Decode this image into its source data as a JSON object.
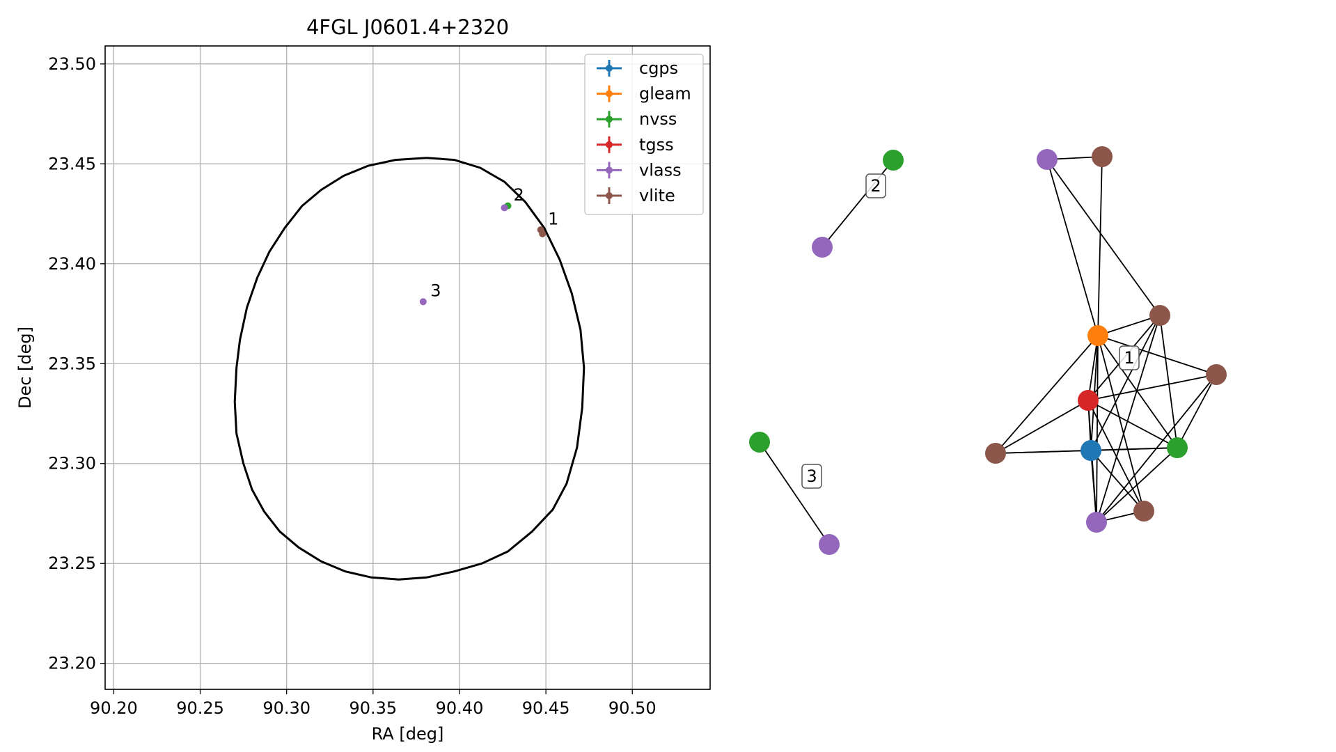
{
  "chart_data": [
    {
      "type": "scatter",
      "title": "4FGL J0601.4+2320",
      "xlabel": "RA [deg]",
      "ylabel": "Dec [deg]",
      "xlim": [
        90.195,
        90.545
      ],
      "ylim": [
        23.187,
        23.509
      ],
      "xticks": [
        "90.20",
        "90.25",
        "90.30",
        "90.35",
        "90.40",
        "90.45",
        "90.50"
      ],
      "yticks": [
        "23.20",
        "23.25",
        "23.30",
        "23.35",
        "23.40",
        "23.45",
        "23.50"
      ],
      "grid": true,
      "legend_position": "top-right",
      "series": [
        {
          "name": "cgps",
          "color": "#1f77b4",
          "points": []
        },
        {
          "name": "gleam",
          "color": "#ff7f0e",
          "points": []
        },
        {
          "name": "nvss",
          "color": "#2ca02c",
          "points": [
            {
              "x": 90.428,
              "y": 23.429
            }
          ]
        },
        {
          "name": "tgss",
          "color": "#d62728",
          "points": []
        },
        {
          "name": "vlass",
          "color": "#9467bd",
          "points": [
            {
              "x": 90.426,
              "y": 23.428
            },
            {
              "x": 90.379,
              "y": 23.381
            }
          ]
        },
        {
          "name": "vlite",
          "color": "#8c564b",
          "points": [
            {
              "x": 90.447,
              "y": 23.417
            },
            {
              "x": 90.448,
              "y": 23.415
            }
          ]
        }
      ],
      "ellipse": {
        "color": "#000000",
        "points": [
          [
            90.381,
            23.453
          ],
          [
            90.397,
            23.452
          ],
          [
            90.412,
            23.448
          ],
          [
            90.426,
            23.441
          ],
          [
            90.438,
            23.431
          ],
          [
            90.449,
            23.418
          ],
          [
            90.458,
            23.402
          ],
          [
            90.465,
            23.385
          ],
          [
            90.47,
            23.367
          ],
          [
            90.472,
            23.348
          ],
          [
            90.471,
            23.328
          ],
          [
            90.468,
            23.308
          ],
          [
            90.462,
            23.29
          ],
          [
            90.454,
            23.277
          ],
          [
            90.442,
            23.266
          ],
          [
            90.428,
            23.256
          ],
          [
            90.413,
            23.25
          ],
          [
            90.397,
            23.246
          ],
          [
            90.381,
            23.243
          ],
          [
            90.365,
            23.242
          ],
          [
            90.349,
            23.243
          ],
          [
            90.334,
            23.246
          ],
          [
            90.32,
            23.251
          ],
          [
            90.307,
            23.258
          ],
          [
            90.296,
            23.266
          ],
          [
            90.287,
            23.276
          ],
          [
            90.28,
            23.287
          ],
          [
            90.275,
            23.3
          ],
          [
            90.271,
            23.315
          ],
          [
            90.27,
            23.331
          ],
          [
            90.271,
            23.348
          ],
          [
            90.273,
            23.362
          ],
          [
            90.277,
            23.378
          ],
          [
            90.283,
            23.393
          ],
          [
            90.29,
            23.406
          ],
          [
            90.299,
            23.418
          ],
          [
            90.309,
            23.429
          ],
          [
            90.32,
            23.437
          ],
          [
            90.333,
            23.444
          ],
          [
            90.347,
            23.449
          ],
          [
            90.363,
            23.452
          ],
          [
            90.381,
            23.453
          ]
        ]
      },
      "annotations": [
        {
          "text": "1",
          "x": 90.45,
          "y": 23.419
        },
        {
          "text": "2",
          "x": 90.43,
          "y": 23.431
        },
        {
          "text": "3",
          "x": 90.382,
          "y": 23.383
        }
      ]
    },
    {
      "type": "network",
      "node_colors": {
        "cgps": "#1f77b4",
        "gleam": "#ff7f0e",
        "nvss": "#2ca02c",
        "tgss": "#d62728",
        "vlass": "#9467bd",
        "vlite": "#8c564b"
      },
      "groups": [
        {
          "label": "1"
        },
        {
          "label": "2"
        },
        {
          "label": "3"
        }
      ]
    }
  ]
}
